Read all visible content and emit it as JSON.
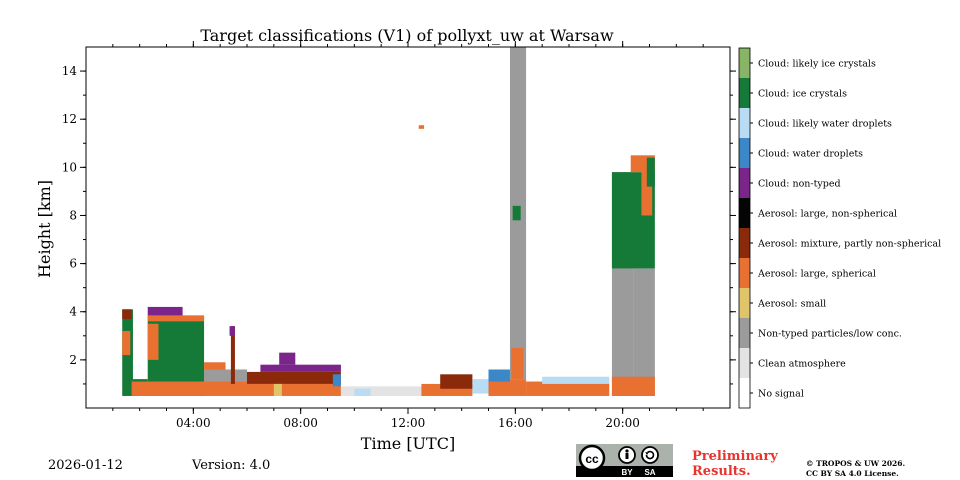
{
  "chart_data": {
    "type": "heatmap",
    "title": "Target classifications (V1) of pollyxt_uw at Warsaw",
    "xlabel": "Time [UTC]",
    "ylabel": "Height [km]",
    "xlim": [
      0,
      24
    ],
    "ylim": [
      0,
      15
    ],
    "xticks": [
      {
        "value": 4,
        "label": "04:00"
      },
      {
        "value": 8,
        "label": "08:00"
      },
      {
        "value": 12,
        "label": "12:00"
      },
      {
        "value": 16,
        "label": "16:00"
      },
      {
        "value": 20,
        "label": "20:00"
      }
    ],
    "yticks": [
      {
        "value": 2,
        "label": "2"
      },
      {
        "value": 4,
        "label": "4"
      },
      {
        "value": 6,
        "label": "6"
      },
      {
        "value": 8,
        "label": "8"
      },
      {
        "value": 10,
        "label": "10"
      },
      {
        "value": 12,
        "label": "12"
      },
      {
        "value": 14,
        "label": "14"
      }
    ],
    "classes": [
      {
        "id": 0,
        "label": "No signal",
        "color": "#ffffff"
      },
      {
        "id": 1,
        "label": "Clean atmosphere",
        "color": "#e3e3e3"
      },
      {
        "id": 2,
        "label": "Non-typed particles/low conc.",
        "color": "#9b9b9b"
      },
      {
        "id": 3,
        "label": "Aerosol: small",
        "color": "#dfc46a"
      },
      {
        "id": 4,
        "label": "Aerosol: large, spherical",
        "color": "#e87030"
      },
      {
        "id": 5,
        "label": "Aerosol: mixture, partly non-spherical",
        "color": "#8a2a0a"
      },
      {
        "id": 6,
        "label": "Aerosol: large, non-spherical",
        "color": "#050505"
      },
      {
        "id": 7,
        "label": "Cloud: non-typed",
        "color": "#7b2489"
      },
      {
        "id": 8,
        "label": "Cloud: water droplets",
        "color": "#3b87c8"
      },
      {
        "id": 9,
        "label": "Cloud: likely water droplets",
        "color": "#b7dcf4"
      },
      {
        "id": 10,
        "label": "Cloud: ice crystals",
        "color": "#157a38"
      },
      {
        "id": 11,
        "label": "Cloud: likely ice crystals",
        "color": "#87b565"
      }
    ],
    "regions": [
      {
        "t0": 1.35,
        "t1": 1.75,
        "h0": 0.5,
        "h1": 4.1,
        "cls": 10
      },
      {
        "t0": 1.35,
        "t1": 1.65,
        "h0": 2.2,
        "h1": 3.2,
        "cls": 4
      },
      {
        "t0": 1.35,
        "t1": 1.7,
        "h0": 3.7,
        "h1": 4.1,
        "cls": 5
      },
      {
        "t0": 1.75,
        "t1": 2.3,
        "h0": 0.5,
        "h1": 1.2,
        "cls": 10
      },
      {
        "t0": 2.3,
        "t1": 4.4,
        "h0": 0.5,
        "h1": 3.8,
        "cls": 10
      },
      {
        "t0": 2.3,
        "t1": 3.6,
        "h0": 3.8,
        "h1": 4.2,
        "cls": 7
      },
      {
        "t0": 2.3,
        "t1": 2.7,
        "h0": 2.0,
        "h1": 3.5,
        "cls": 4
      },
      {
        "t0": 2.3,
        "t1": 4.4,
        "h0": 3.6,
        "h1": 3.85,
        "cls": 4
      },
      {
        "t0": 1.7,
        "t1": 6.0,
        "h0": 0.5,
        "h1": 1.1,
        "cls": 4
      },
      {
        "t0": 4.4,
        "t1": 5.2,
        "h0": 1.1,
        "h1": 1.9,
        "cls": 4
      },
      {
        "t0": 4.4,
        "t1": 6.0,
        "h0": 1.1,
        "h1": 1.6,
        "cls": 2
      },
      {
        "t0": 5.4,
        "t1": 5.55,
        "h0": 1.0,
        "h1": 3.4,
        "cls": 5
      },
      {
        "t0": 5.35,
        "t1": 5.55,
        "h0": 3.0,
        "h1": 3.4,
        "cls": 7
      },
      {
        "t0": 6.0,
        "t1": 9.5,
        "h0": 0.5,
        "h1": 1.0,
        "cls": 4
      },
      {
        "t0": 6.0,
        "t1": 9.5,
        "h0": 1.0,
        "h1": 1.5,
        "cls": 5
      },
      {
        "t0": 6.5,
        "t1": 9.5,
        "h0": 1.5,
        "h1": 1.8,
        "cls": 7
      },
      {
        "t0": 7.2,
        "t1": 7.8,
        "h0": 1.8,
        "h1": 2.3,
        "cls": 7
      },
      {
        "t0": 7.0,
        "t1": 7.3,
        "h0": 0.5,
        "h1": 1.0,
        "cls": 3
      },
      {
        "t0": 9.2,
        "t1": 9.5,
        "h0": 0.9,
        "h1": 1.4,
        "cls": 8
      },
      {
        "t0": 9.5,
        "t1": 12.8,
        "h0": 0.5,
        "h1": 0.9,
        "cls": 1
      },
      {
        "t0": 10.0,
        "t1": 10.6,
        "h0": 0.5,
        "h1": 0.8,
        "cls": 9
      },
      {
        "t0": 12.5,
        "t1": 14.4,
        "h0": 0.5,
        "h1": 1.0,
        "cls": 4
      },
      {
        "t0": 13.2,
        "t1": 14.4,
        "h0": 0.8,
        "h1": 1.4,
        "cls": 5
      },
      {
        "t0": 14.4,
        "t1": 15.1,
        "h0": 0.6,
        "h1": 1.2,
        "cls": 9
      },
      {
        "t0": 15.0,
        "t1": 16.4,
        "h0": 0.5,
        "h1": 1.2,
        "cls": 4
      },
      {
        "t0": 15.0,
        "t1": 15.8,
        "h0": 1.1,
        "h1": 1.6,
        "cls": 8
      },
      {
        "t0": 15.8,
        "t1": 16.4,
        "h0": 1.2,
        "h1": 15.0,
        "cls": 2
      },
      {
        "t0": 15.85,
        "t1": 16.3,
        "h0": 1.2,
        "h1": 2.5,
        "cls": 4
      },
      {
        "t0": 15.9,
        "t1": 16.2,
        "h0": 7.8,
        "h1": 8.4,
        "cls": 10
      },
      {
        "t0": 16.4,
        "t1": 19.5,
        "h0": 0.5,
        "h1": 1.1,
        "cls": 4
      },
      {
        "t0": 17.0,
        "t1": 19.5,
        "h0": 1.0,
        "h1": 1.3,
        "cls": 9
      },
      {
        "t0": 19.6,
        "t1": 20.4,
        "h0": 0.5,
        "h1": 9.8,
        "cls": 2
      },
      {
        "t0": 20.4,
        "t1": 21.2,
        "h0": 0.5,
        "h1": 5.8,
        "cls": 2
      },
      {
        "t0": 19.6,
        "t1": 21.2,
        "h0": 0.5,
        "h1": 1.3,
        "cls": 4
      },
      {
        "t0": 19.6,
        "t1": 21.2,
        "h0": 5.8,
        "h1": 9.8,
        "cls": 10
      },
      {
        "t0": 20.3,
        "t1": 21.2,
        "h0": 9.8,
        "h1": 10.5,
        "cls": 4
      },
      {
        "t0": 20.7,
        "t1": 21.1,
        "h0": 8.0,
        "h1": 10.0,
        "cls": 4
      },
      {
        "t0": 20.9,
        "t1": 21.2,
        "h0": 9.2,
        "h1": 10.4,
        "cls": 10
      },
      {
        "t0": 12.4,
        "t1": 12.6,
        "h0": 11.6,
        "h1": 11.75,
        "cls": 4
      }
    ]
  },
  "footer": {
    "date": "2026-01-12",
    "version": "Version: 4.0",
    "preliminary_line1": "Preliminary",
    "preliminary_line2": "Results.",
    "license_line1": "© TROPOS & UW 2026.",
    "license_line2": "CC BY SA 4.0 License.",
    "cc_badge_by": "BY",
    "cc_badge_sa": "SA"
  }
}
